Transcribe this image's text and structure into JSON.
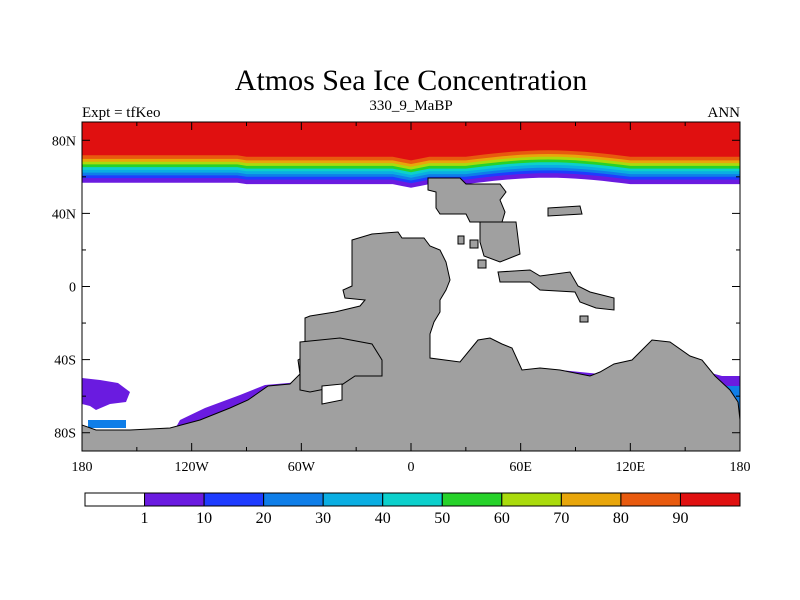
{
  "chart_data": {
    "type": "heatmap",
    "title": "Atmos Sea Ice Concentration",
    "subtitle_center": "330_9_MaBP",
    "subtitle_left": "Expt = tfKeo",
    "subtitle_right": "ANN",
    "x_ticks": [
      {
        "value": -180,
        "label": "180"
      },
      {
        "value": -120,
        "label": "120W"
      },
      {
        "value": -60,
        "label": "60W"
      },
      {
        "value": 0,
        "label": "0"
      },
      {
        "value": 60,
        "label": "60E"
      },
      {
        "value": 120,
        "label": "120E"
      },
      {
        "value": 180,
        "label": "180"
      }
    ],
    "y_ticks": [
      {
        "value": 80,
        "label": "80N"
      },
      {
        "value": 40,
        "label": "40N"
      },
      {
        "value": 0,
        "label": "0"
      },
      {
        "value": -40,
        "label": "40S"
      },
      {
        "value": -80,
        "label": "80S"
      }
    ],
    "xlim": [
      -180,
      180
    ],
    "ylim": [
      -90,
      90
    ],
    "colorbar": {
      "levels": [
        "1",
        "10",
        "20",
        "30",
        "40",
        "50",
        "60",
        "70",
        "80",
        "90"
      ],
      "colors": [
        "#ffffff",
        "#6a1be0",
        "#1e3cff",
        "#0f7ee8",
        "#0aaee2",
        "#0cd0cc",
        "#27d22a",
        "#aadb0c",
        "#e8a60b",
        "#e85a0e",
        "#e01010"
      ]
    },
    "land_color": "#a0a0a0",
    "northern_ice_bands": [
      {
        "level": "90",
        "color": "#e01010",
        "lat_south_edge": 71
      },
      {
        "level": "80",
        "color": "#e85a0e",
        "lat_south_edge": 69
      },
      {
        "level": "70",
        "color": "#e8a60b",
        "lat_south_edge": 67.5
      },
      {
        "level": "60",
        "color": "#aadb0c",
        "lat_south_edge": 66
      },
      {
        "level": "50",
        "color": "#27d22a",
        "lat_south_edge": 64.5
      },
      {
        "level": "40",
        "color": "#0cd0cc",
        "lat_south_edge": 63
      },
      {
        "level": "30",
        "color": "#0aaee2",
        "lat_south_edge": 61.5
      },
      {
        "level": "20",
        "color": "#0f7ee8",
        "lat_south_edge": 60
      },
      {
        "level": "10",
        "color": "#1e3cff",
        "lat_south_edge": 58.5
      },
      {
        "level": "1",
        "color": "#6a1be0",
        "lat_south_edge": 56
      }
    ]
  }
}
